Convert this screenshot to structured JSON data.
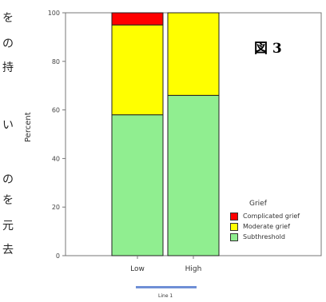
{
  "margin_text": [
    "を",
    "の",
    "持",
    "い",
    "の",
    "を",
    "元",
    "去"
  ],
  "figure_label": "図 3",
  "chart_data": {
    "type": "bar",
    "stacked": true,
    "categories": [
      "Low",
      "High"
    ],
    "series": [
      {
        "name": "Subthreshold",
        "color": "#90ee90",
        "values": [
          58,
          66
        ]
      },
      {
        "name": "Moderate grief",
        "color": "#ffff00",
        "values": [
          37,
          34
        ]
      },
      {
        "name": "Complicated grief",
        "color": "#ff0000",
        "values": [
          5,
          0
        ]
      }
    ],
    "ylabel": "Percent",
    "xlabel": "Line 1",
    "ylim": [
      0,
      100
    ],
    "yticks": [
      0,
      20,
      40,
      60,
      80,
      100
    ],
    "legend_title": "Grief",
    "legend_position": "bottom-right"
  }
}
